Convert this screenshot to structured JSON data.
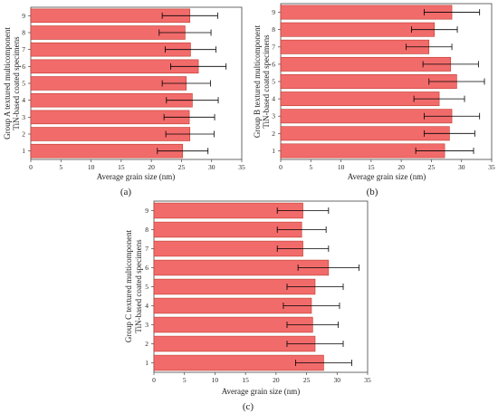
{
  "figure": {
    "panels": [
      {
        "ylabel_line1": "Group A textured multicomponent",
        "ylabel_line2": "TiN-based coated specimens",
        "xlabel": "Average grain size (nm)",
        "panel_label": "(a)"
      },
      {
        "ylabel_line1": "Group B textured multicomponent",
        "ylabel_line2": "TiN-based coated specimens",
        "xlabel": "Average grain size (nm)",
        "panel_label": "(b)"
      },
      {
        "ylabel_line1": "Group C textured multicomponent",
        "ylabel_line2": "TiN-based coated specimens",
        "xlabel": "Average grain size (nm)",
        "panel_label": "(c)"
      }
    ]
  },
  "colors": {
    "bar_fill": "#f26b6b",
    "bar_stroke": "#c0392b",
    "axis": "#444444",
    "error_bar": "#000000"
  },
  "chart_data": [
    {
      "type": "bar",
      "orientation": "horizontal",
      "error_bars": true,
      "title": "",
      "xlabel": "Average grain size (nm)",
      "ylabel": "Group A textured multicomponent TiN-based coated specimens",
      "categories": [
        "1",
        "2",
        "3",
        "4",
        "5",
        "6",
        "7",
        "8",
        "9"
      ],
      "values": [
        25.2,
        26.4,
        26.3,
        26.8,
        25.8,
        27.8,
        26.5,
        25.6,
        26.4
      ],
      "errors": [
        4.2,
        4.0,
        4.2,
        4.3,
        4.0,
        4.6,
        4.2,
        4.3,
        4.6
      ],
      "xlim": [
        0,
        35
      ],
      "xticks": [
        0,
        5,
        10,
        15,
        20,
        25,
        30,
        35
      ],
      "panel_label": "(a)"
    },
    {
      "type": "bar",
      "orientation": "horizontal",
      "error_bars": true,
      "title": "",
      "xlabel": "Average grain size (nm)",
      "ylabel": "Group B textured multicomponent TiN-based coated specimens",
      "categories": [
        "1",
        "2",
        "3",
        "4",
        "5",
        "6",
        "7",
        "8",
        "9"
      ],
      "values": [
        27.2,
        28.0,
        28.4,
        26.3,
        29.2,
        28.2,
        24.6,
        25.5,
        28.4
      ],
      "errors": [
        4.8,
        4.2,
        4.6,
        4.2,
        4.6,
        4.6,
        3.8,
        3.8,
        4.6
      ],
      "xlim": [
        0,
        35
      ],
      "xticks": [
        0,
        5,
        10,
        15,
        20,
        25,
        30,
        35
      ],
      "panel_label": "(b)"
    },
    {
      "type": "bar",
      "orientation": "horizontal",
      "error_bars": true,
      "title": "",
      "xlabel": "Average grain size (nm)",
      "ylabel": "Group C textured multicomponent TiN-based coated specimens",
      "categories": [
        "1",
        "2",
        "3",
        "4",
        "5",
        "6",
        "7",
        "8",
        "9"
      ],
      "values": [
        27.8,
        26.4,
        26.0,
        25.8,
        26.4,
        28.6,
        24.4,
        24.2,
        24.4
      ],
      "errors": [
        4.6,
        4.6,
        4.2,
        4.6,
        4.6,
        5.0,
        4.2,
        4.0,
        4.2
      ],
      "xlim": [
        0,
        35
      ],
      "xticks": [
        0,
        5,
        10,
        15,
        20,
        25,
        30,
        35
      ],
      "panel_label": "(c)"
    }
  ]
}
